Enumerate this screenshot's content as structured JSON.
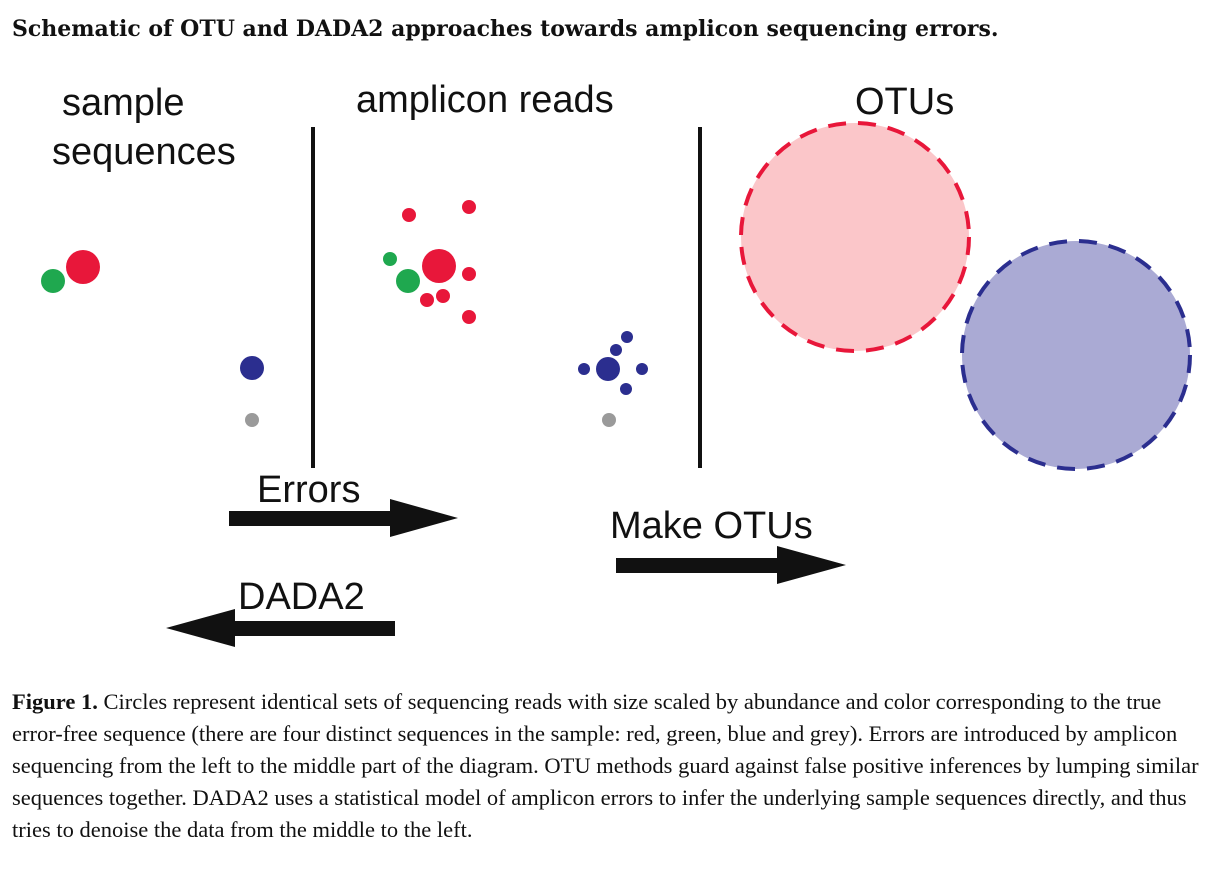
{
  "title": "Schematic of OTU and DADA2 approaches towards amplicon sequencing errors.",
  "panels": {
    "sample": {
      "line1": "sample",
      "line2": "sequences"
    },
    "reads": {
      "label": "amplicon reads"
    },
    "otus": {
      "label": "OTUs"
    }
  },
  "arrows": {
    "errors": "Errors",
    "make_otus": "Make OTUs",
    "dada2": "DADA2"
  },
  "colors": {
    "red": "#e8173a",
    "green": "#1fa84f",
    "blue": "#2b2e8f",
    "grey": "#9a9a9a",
    "otu_red_fill": "#fbc6c9",
    "otu_blue_fill": "#aaaad4",
    "arrow": "#111111"
  },
  "caption": {
    "lead": "Figure 1.",
    "text": "Circles represent identical sets of sequencing reads with size scaled by abundance and color corresponding to the true error-free sequence (there are four distinct sequences in the sample: red, green, blue and grey). Errors are introduced by amplicon sequencing from the left to the middle part of the diagram. OTU methods guard against false positive inferences by lumping similar sequences together. DADA2 uses a statistical model of amplicon errors to infer the underlying sample sequences directly, and thus tries to denoise the data from the middle to the left."
  }
}
